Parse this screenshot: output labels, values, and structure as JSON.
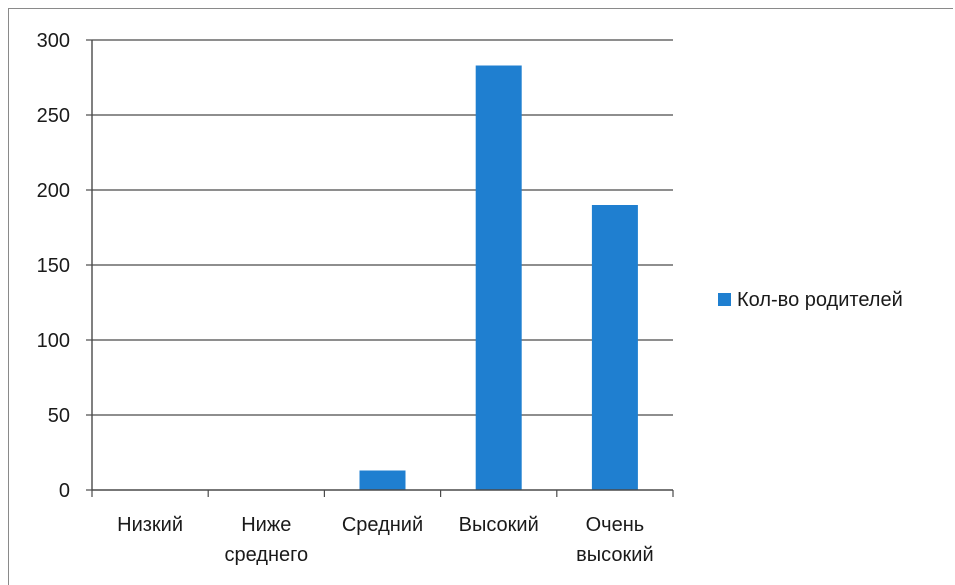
{
  "chart_data": {
    "type": "bar",
    "categories": [
      [
        "Низкий"
      ],
      [
        "Ниже",
        "среднего"
      ],
      [
        "Средний"
      ],
      [
        "Высокий"
      ],
      [
        "Очень",
        "высокий"
      ]
    ],
    "series": [
      {
        "name": "Кол-во родителей",
        "values": [
          0,
          0,
          13,
          283,
          190
        ],
        "color": "#1f7fd0"
      }
    ],
    "ylim": [
      0,
      300
    ],
    "yticks": [
      "0",
      "50",
      "100",
      "150",
      "200",
      "250",
      "300"
    ],
    "grid": true,
    "legend_position": "right"
  }
}
